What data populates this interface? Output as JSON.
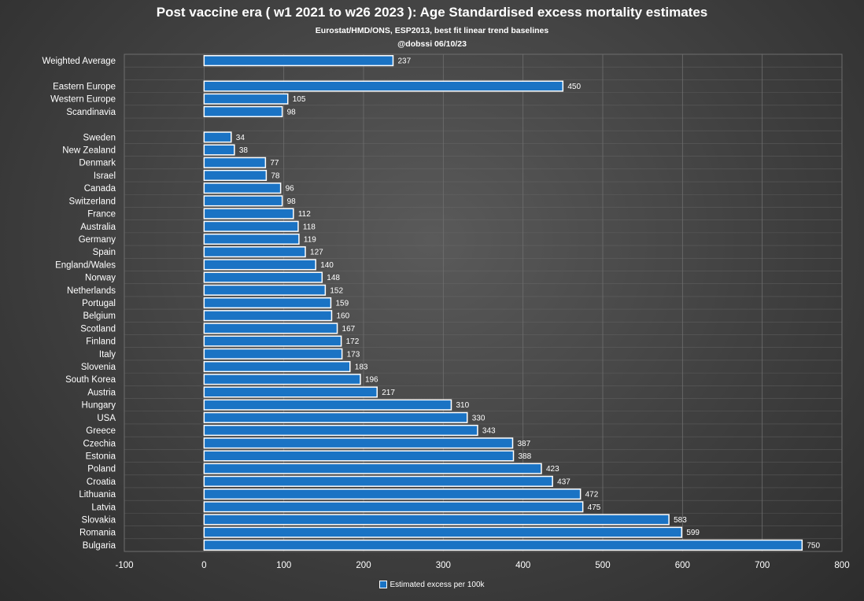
{
  "chart_data": {
    "type": "bar",
    "orientation": "horizontal",
    "title": "Post vaccine era ( w1 2021 to w26 2023 ): Age Standardised excess mortality estimates",
    "subtitle": "Eurostat/HMD/ONS, ESP2013, best fit linear trend baselines",
    "credit": "@dobssi 06/10/23",
    "categories": [
      "Weighted Average",
      "",
      "Eastern Europe",
      "Western Europe",
      "Scandinavia",
      "",
      "Sweden",
      "New Zealand",
      "Denmark",
      "Israel",
      "Canada",
      "Switzerland",
      "France",
      "Australia",
      "Germany",
      "Spain",
      "England/Wales",
      "Norway",
      "Netherlands",
      "Portugal",
      "Belgium",
      "Scotland",
      "Finland",
      "Italy",
      "Slovenia",
      "South Korea",
      "Austria",
      "Hungary",
      "USA",
      "Greece",
      "Czechia",
      "Estonia",
      "Poland",
      "Croatia",
      "Lithuania",
      "Latvia",
      "Slovakia",
      "Romania",
      "Bulgaria"
    ],
    "series": [
      {
        "name": "Estimated excess per 100k",
        "values": [
          237,
          null,
          450,
          105,
          98,
          null,
          34,
          38,
          77,
          78,
          96,
          98,
          112,
          118,
          119,
          127,
          140,
          148,
          152,
          159,
          160,
          167,
          172,
          173,
          183,
          196,
          217,
          310,
          330,
          343,
          387,
          388,
          423,
          437,
          472,
          475,
          583,
          599,
          750
        ],
        "color": "#1a73c4"
      }
    ],
    "xlim": [
      -100,
      800
    ],
    "xticks": [
      -100,
      0,
      100,
      200,
      300,
      400,
      500,
      600,
      700,
      800
    ],
    "xlabel": "",
    "ylabel": "",
    "grid": true,
    "legend": "bottom-center"
  },
  "colors": {
    "bar_fill": "#1a73c4",
    "bar_border": "#ffffff",
    "grid": "#6e6e6e"
  }
}
